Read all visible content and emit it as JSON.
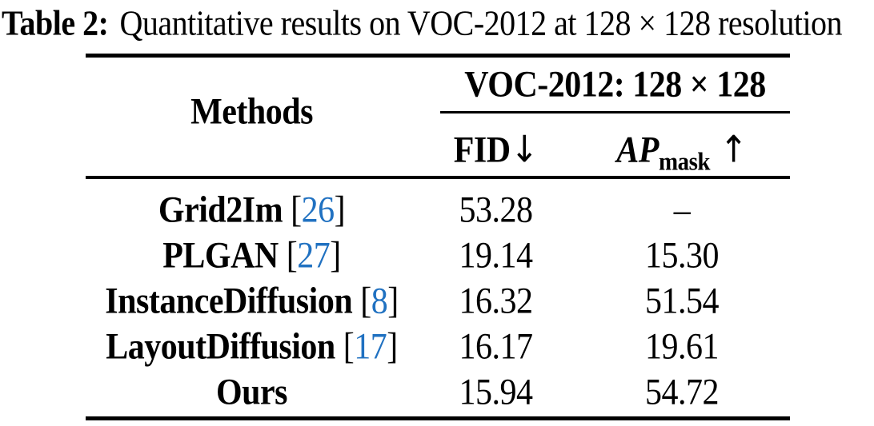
{
  "caption": {
    "label": "Table 2:",
    "text": "Quantitative results on VOC-2012 at 128 × 128 resolution"
  },
  "header": {
    "methods": "Methods",
    "group_title": "VOC-2012: 128 × 128",
    "col_fid": "FID",
    "col_ap_base": "AP",
    "col_ap_sub": "mask"
  },
  "symbols": {
    "open_bracket": "[",
    "close_bracket": "]",
    "down_arrow": "↓",
    "up_arrow": "↑"
  },
  "rows": [
    {
      "method": "Grid2Im",
      "cite": "26",
      "fid": "53.28",
      "ap_mask": "–"
    },
    {
      "method": "PLGAN",
      "cite": "27",
      "fid": "19.14",
      "ap_mask": "15.30"
    },
    {
      "method": "InstanceDiffusion",
      "cite": "8",
      "fid": "16.32",
      "ap_mask": "51.54"
    },
    {
      "method": "LayoutDiffusion",
      "cite": "17",
      "fid": "16.17",
      "ap_mask": "19.61"
    },
    {
      "method": "Ours",
      "cite": null,
      "fid": "15.94",
      "ap_mask": "54.72"
    }
  ],
  "colors": {
    "background": "#ffffff",
    "text": "#000000",
    "citation_blue": "#2071c1"
  }
}
